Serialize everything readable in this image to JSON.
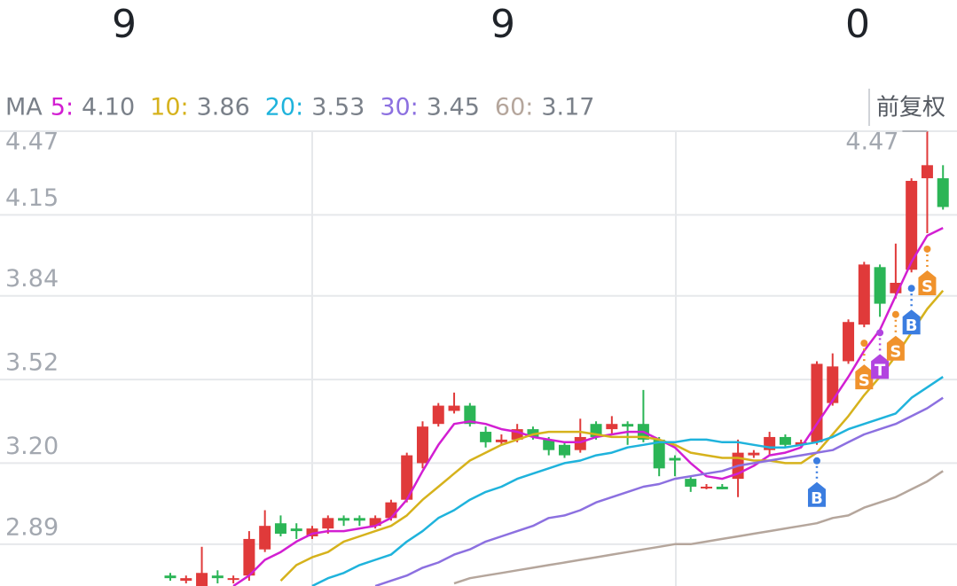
{
  "header": {
    "values": [
      "9",
      "9",
      "0"
    ]
  },
  "chart_data": {
    "type": "candlestick",
    "legend_title": "MA",
    "button": "前复权",
    "ylim": [
      2.73,
      4.47
    ],
    "yticks": [
      4.47,
      4.15,
      3.84,
      3.52,
      {
        "value": 3.2,
        "label": "3.20"
      },
      2.89
    ],
    "grid": true,
    "up_color": "#e03a3a",
    "down_color": "#2bb556",
    "ohlc": {
      "open": [
        2.77,
        2.75,
        2.73,
        2.77,
        2.76,
        2.77,
        2.87,
        2.97,
        2.95,
        2.92,
        2.95,
        2.99,
        2.99,
        2.96,
        2.99,
        3.06,
        3.2,
        3.35,
        3.4,
        3.42,
        3.32,
        3.28,
        3.29,
        3.33,
        3.29,
        3.27,
        3.25,
        3.35,
        3.33,
        3.35,
        3.35,
        3.29,
        3.22,
        3.14,
        3.11,
        3.11,
        3.14,
        3.23,
        3.25,
        3.3,
        3.27,
        3.28,
        3.43,
        3.59,
        3.73,
        3.95,
        3.85,
        3.94,
        4.29,
        4.29
      ],
      "close": [
        2.76,
        2.76,
        2.78,
        2.76,
        2.76,
        2.91,
        2.96,
        2.93,
        2.94,
        2.95,
        2.99,
        2.98,
        2.98,
        2.99,
        3.05,
        3.23,
        3.34,
        3.42,
        3.42,
        3.35,
        3.28,
        3.29,
        3.33,
        3.3,
        3.25,
        3.23,
        3.3,
        3.3,
        3.35,
        3.34,
        3.29,
        3.18,
        3.21,
        3.11,
        3.11,
        3.1,
        3.24,
        3.24,
        3.3,
        3.27,
        3.28,
        3.58,
        3.57,
        3.74,
        3.96,
        3.81,
        3.89,
        4.28,
        4.34,
        4.18
      ],
      "high": [
        2.78,
        2.77,
        2.88,
        2.79,
        2.77,
        2.94,
        3.02,
        3.0,
        2.97,
        2.96,
        3.0,
        3.0,
        3.0,
        3.0,
        3.06,
        3.24,
        3.36,
        3.43,
        3.47,
        3.43,
        3.34,
        3.31,
        3.35,
        3.34,
        3.3,
        3.28,
        3.37,
        3.36,
        3.38,
        3.36,
        3.48,
        3.3,
        3.23,
        3.15,
        3.12,
        3.12,
        3.29,
        3.25,
        3.32,
        3.31,
        3.29,
        3.59,
        3.62,
        3.75,
        3.97,
        3.96,
        4.04,
        4.29,
        4.47,
        4.34
      ],
      "low": [
        2.75,
        2.74,
        2.73,
        2.74,
        2.74,
        2.75,
        2.86,
        2.92,
        2.91,
        2.91,
        2.93,
        2.96,
        2.96,
        2.95,
        2.98,
        3.05,
        3.18,
        3.34,
        3.39,
        3.34,
        3.26,
        3.27,
        3.28,
        3.29,
        3.23,
        3.22,
        3.24,
        3.29,
        3.31,
        3.27,
        3.28,
        3.15,
        3.15,
        3.09,
        3.1,
        3.1,
        3.07,
        3.22,
        3.23,
        3.26,
        3.26,
        3.27,
        3.42,
        3.58,
        3.72,
        3.76,
        3.83,
        3.93,
        4.08,
        4.17
      ]
    },
    "series": [
      {
        "name": "5:",
        "color": "#d21fd2",
        "last_label": "4.10",
        "values": [
          null,
          null,
          null,
          null,
          2.73,
          2.77,
          2.83,
          2.86,
          2.9,
          2.93,
          2.94,
          2.94,
          2.95,
          2.96,
          2.99,
          3.06,
          3.17,
          3.27,
          3.35,
          3.36,
          3.35,
          3.33,
          3.32,
          3.3,
          3.29,
          3.28,
          3.28,
          3.3,
          3.31,
          3.32,
          3.32,
          3.29,
          3.26,
          3.2,
          3.15,
          3.14,
          3.16,
          3.19,
          3.23,
          3.24,
          3.26,
          3.35,
          3.44,
          3.53,
          3.63,
          3.71,
          3.84,
          3.97,
          4.07,
          4.1
        ]
      },
      {
        "name": "10:",
        "color": "#d6b21c",
        "last_label": "3.86",
        "values": [
          null,
          null,
          null,
          null,
          null,
          null,
          null,
          2.75,
          2.81,
          2.84,
          2.86,
          2.9,
          2.92,
          2.94,
          2.96,
          3.0,
          3.06,
          3.11,
          3.16,
          3.21,
          3.24,
          3.27,
          3.29,
          3.31,
          3.32,
          3.32,
          3.32,
          3.31,
          3.3,
          3.3,
          3.3,
          3.29,
          3.27,
          3.24,
          3.23,
          3.22,
          3.22,
          3.21,
          3.21,
          3.2,
          3.2,
          3.24,
          3.31,
          3.38,
          3.46,
          3.53,
          3.61,
          3.7,
          3.79,
          3.86
        ]
      },
      {
        "name": "20:",
        "color": "#1fb3dc",
        "last_label": "3.53",
        "values": [
          null,
          null,
          null,
          null,
          null,
          null,
          null,
          null,
          null,
          2.73,
          2.76,
          2.78,
          2.81,
          2.83,
          2.85,
          2.9,
          2.94,
          2.99,
          3.02,
          3.06,
          3.09,
          3.11,
          3.14,
          3.16,
          3.18,
          3.2,
          3.21,
          3.23,
          3.24,
          3.26,
          3.27,
          3.28,
          3.28,
          3.29,
          3.29,
          3.28,
          3.28,
          3.27,
          3.26,
          3.26,
          3.27,
          3.28,
          3.3,
          3.33,
          3.35,
          3.37,
          3.39,
          3.45,
          3.49,
          3.53
        ]
      },
      {
        "name": "30:",
        "color": "#8c70e0",
        "last_label": "3.45",
        "values": [
          null,
          null,
          null,
          null,
          null,
          null,
          null,
          null,
          null,
          null,
          null,
          null,
          null,
          2.73,
          2.75,
          2.77,
          2.8,
          2.82,
          2.85,
          2.87,
          2.9,
          2.92,
          2.94,
          2.96,
          2.99,
          3.0,
          3.02,
          3.05,
          3.07,
          3.09,
          3.11,
          3.12,
          3.14,
          3.15,
          3.16,
          3.17,
          3.19,
          3.2,
          3.21,
          3.22,
          3.23,
          3.24,
          3.25,
          3.28,
          3.31,
          3.33,
          3.35,
          3.38,
          3.41,
          3.45
        ]
      },
      {
        "name": "60:",
        "color": "#b5a69c",
        "last_label": "3.17",
        "values": [
          null,
          null,
          null,
          null,
          null,
          null,
          null,
          null,
          null,
          null,
          null,
          null,
          null,
          null,
          null,
          null,
          null,
          null,
          2.74,
          2.76,
          2.77,
          2.78,
          2.79,
          2.8,
          2.81,
          2.82,
          2.83,
          2.84,
          2.85,
          2.86,
          2.87,
          2.88,
          2.89,
          2.89,
          2.9,
          2.91,
          2.92,
          2.93,
          2.94,
          2.95,
          2.96,
          2.97,
          2.99,
          3.0,
          3.03,
          3.05,
          3.07,
          3.1,
          3.13,
          3.17
        ]
      }
    ],
    "signals": [
      {
        "label": "B",
        "x": 41,
        "color": "#3b7de0"
      },
      {
        "label": "S",
        "x": 44,
        "color": "#f0922c"
      },
      {
        "label": "T",
        "x": 45,
        "color": "#b244e0"
      },
      {
        "label": "S",
        "x": 46,
        "color": "#f0922c"
      },
      {
        "label": "B",
        "x": 47,
        "color": "#3b7de0"
      },
      {
        "label": "S",
        "x": 48,
        "color": "#f0922c"
      }
    ]
  }
}
